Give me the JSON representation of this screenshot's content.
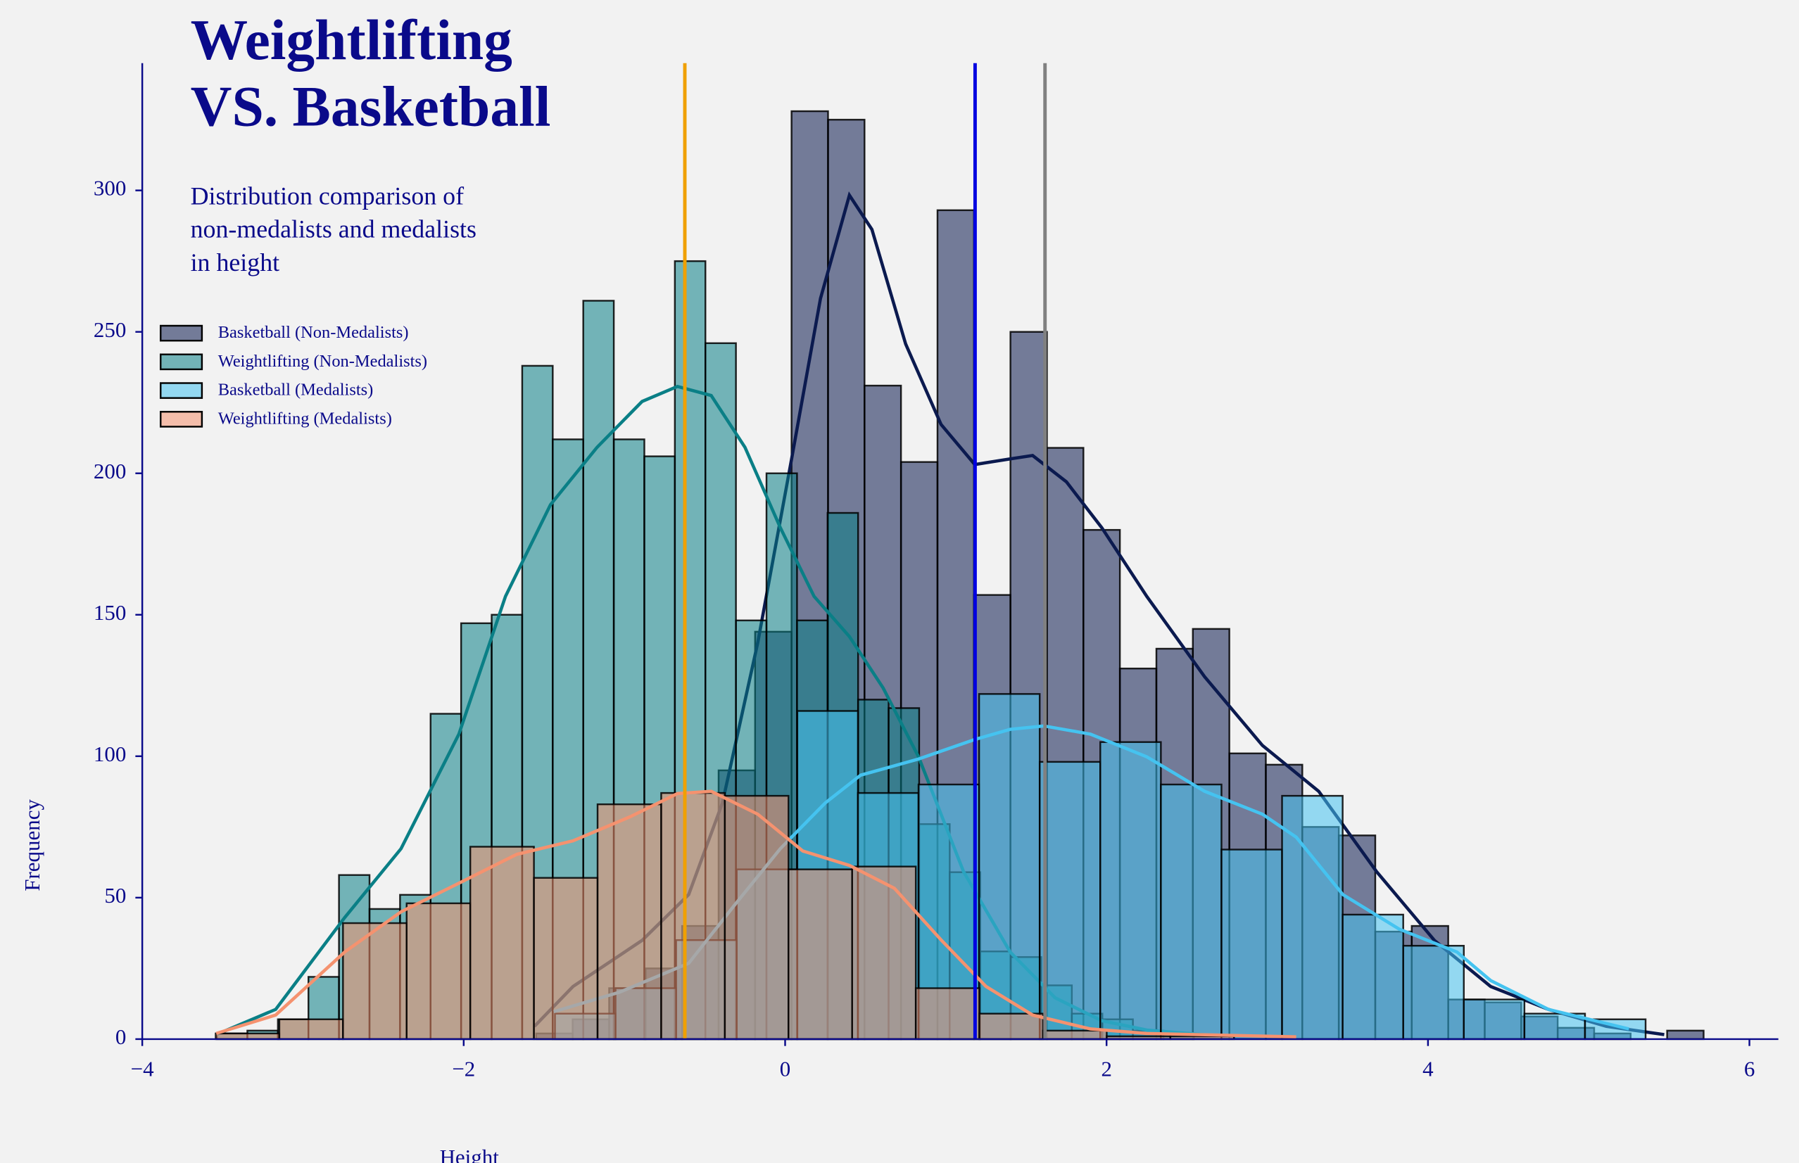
{
  "chart_data": {
    "type": "histogram",
    "title": [
      "Weightlifting",
      "VS. Basketball"
    ],
    "subtitle": [
      "Distribution comparison of",
      "non-medalists and medalists",
      "in height"
    ],
    "x_label": "Height",
    "y_label": "Frequency",
    "xlim": [
      -4,
      6.18
    ],
    "ylim": [
      0,
      345
    ],
    "xticks": [
      {
        "value": -4,
        "label": "−4"
      },
      {
        "value": -2,
        "label": "−2"
      },
      0,
      2,
      4,
      6
    ],
    "yticks": [
      0,
      50,
      100,
      150,
      200,
      250,
      300
    ],
    "legend": "upper left",
    "series": [
      {
        "name": "Basketball (Non-Medalists)",
        "color": "#0b1a4f",
        "bins": [
          -1.549,
          -1.322,
          -1.095,
          -0.868,
          -0.641,
          -0.414,
          -0.187,
          0.04,
          0.267,
          0.494,
          0.721,
          0.948,
          1.175,
          1.402,
          1.629,
          1.856,
          2.083,
          2.31,
          2.537,
          2.764,
          2.991,
          3.218,
          3.445,
          3.672,
          3.899,
          4.126,
          4.353,
          4.58,
          4.807,
          5.034,
          5.261,
          5.488,
          5.715
        ],
        "values": [
          2,
          7,
          18,
          25,
          40,
          95,
          144,
          328,
          325,
          231,
          204,
          293,
          157,
          250,
          209,
          180,
          131,
          138,
          145,
          101,
          97,
          75,
          72,
          38,
          40,
          14,
          13,
          8,
          4,
          2,
          0,
          3
        ],
        "kde": {
          "x": [
            -1.56,
            -1.32,
            -0.89,
            -0.6,
            -0.39,
            -0.17,
            0.04,
            0.22,
            0.4,
            0.54,
            0.75,
            0.97,
            1.18,
            1.4,
            1.54,
            1.75,
            1.97,
            2.25,
            2.61,
            2.97,
            3.32,
            3.68,
            4.04,
            4.39,
            4.75,
            5.11,
            5.47
          ],
          "y": [
            4.5,
            18.6,
            34.9,
            51.1,
            83.5,
            140.2,
            205,
            261.8,
            298.3,
            286.2,
            245.7,
            217.3,
            203.1,
            205.1,
            206.3,
            197,
            180.8,
            156.5,
            128.1,
            103.8,
            87.6,
            59.2,
            34.9,
            18.6,
            10.5,
            4.5,
            1.6
          ]
        }
      },
      {
        "name": "Weightlifting (Non-Medalists)",
        "color": "#0a7f86",
        "bins": [
          -3.536,
          -3.346,
          -3.156,
          -2.966,
          -2.776,
          -2.586,
          -2.396,
          -2.206,
          -2.016,
          -1.826,
          -1.636,
          -1.446,
          -1.256,
          -1.066,
          -0.876,
          -0.686,
          -0.496,
          -0.306,
          -0.116,
          0.074,
          0.264,
          0.454,
          0.644,
          0.834,
          1.024,
          1.214,
          1.404,
          1.594,
          1.784,
          1.974,
          2.164,
          2.354,
          2.544
        ],
        "values": [
          2,
          3,
          7,
          22,
          58,
          46,
          51,
          115,
          147,
          150,
          238,
          212,
          261,
          212,
          206,
          275,
          246,
          148,
          200,
          148,
          186,
          120,
          117,
          76,
          59,
          31,
          29,
          19,
          9,
          7,
          3,
          2
        ],
        "kde": {
          "x": [
            -3.54,
            -3.17,
            -2.74,
            -2.39,
            -2.03,
            -1.74,
            -1.46,
            -1.17,
            -0.89,
            -0.67,
            -0.46,
            -0.25,
            -0.03,
            0.18,
            0.4,
            0.61,
            0.83,
            1.11,
            1.4,
            1.68,
            1.97,
            2.25,
            2.68
          ],
          "y": [
            1.6,
            10.5,
            43,
            67.3,
            107.8,
            156.5,
            188.9,
            209.2,
            225.4,
            230.7,
            227.5,
            209.2,
            180.8,
            156.5,
            142.3,
            124.1,
            99.8,
            59.2,
            30.8,
            14.6,
            6.5,
            3.2,
            1.2
          ]
        }
      },
      {
        "name": "Basketball (Medalists)",
        "color": "#45c3f0",
        "bins": [
          -1.432,
          -1.055,
          -0.678,
          -0.301,
          0.076,
          0.453,
          0.83,
          1.207,
          1.584,
          1.961,
          2.338,
          2.715,
          3.092,
          3.469,
          3.846,
          4.223,
          4.6,
          4.977,
          5.354
        ],
        "values": [
          9,
          18,
          35,
          60,
          116,
          87,
          90,
          122,
          98,
          105,
          90,
          67,
          86,
          44,
          33,
          14,
          9,
          7
        ],
        "kde": {
          "x": [
            -1.44,
            -1.03,
            -0.6,
            -0.32,
            -0.03,
            0.25,
            0.47,
            0.83,
            1.18,
            1.4,
            1.61,
            1.9,
            2.25,
            2.61,
            2.97,
            3.18,
            3.47,
            3.82,
            4.18,
            4.39,
            4.75,
            5.25
          ],
          "y": [
            9.7,
            16.6,
            26.8,
            47,
            67.3,
            83.5,
            93.3,
            99,
            105.9,
            109.5,
            110.7,
            107.8,
            99.8,
            87.6,
            79.5,
            71.4,
            51.1,
            38.9,
            30.8,
            20.7,
            10.5,
            3.6
          ]
        }
      },
      {
        "name": "Weightlifting (Medalists)",
        "color": "#f5926f",
        "bins": [
          -3.543,
          -3.147,
          -2.751,
          -2.355,
          -1.959,
          -1.563,
          -1.167,
          -0.771,
          -0.375,
          0.021,
          0.417,
          0.813,
          1.209,
          1.605,
          2.001,
          2.397,
          2.793
        ],
        "values": [
          2,
          7,
          41,
          48,
          68,
          57,
          83,
          87,
          86,
          60,
          61,
          18,
          9,
          3,
          1,
          1
        ],
        "kde": {
          "x": [
            -3.54,
            -3.17,
            -2.74,
            -2.39,
            -2.03,
            -1.67,
            -1.32,
            -0.96,
            -0.67,
            -0.46,
            -0.17,
            0.11,
            0.4,
            0.68,
            0.97,
            1.25,
            1.54,
            1.9,
            2.25,
            3.18
          ],
          "y": [
            2,
            8.5,
            30.8,
            45,
            55.1,
            65.3,
            70.1,
            78.7,
            86.8,
            87.6,
            79.5,
            66.5,
            61.4,
            53.3,
            35.1,
            18.6,
            8.5,
            3.6,
            2,
            0.8
          ]
        }
      }
    ],
    "vlines": [
      {
        "x": -0.624,
        "color": "#f0a000"
      },
      {
        "x": 1.182,
        "color": "#0000e0"
      },
      {
        "x": 1.617,
        "color": "#808080"
      }
    ]
  }
}
